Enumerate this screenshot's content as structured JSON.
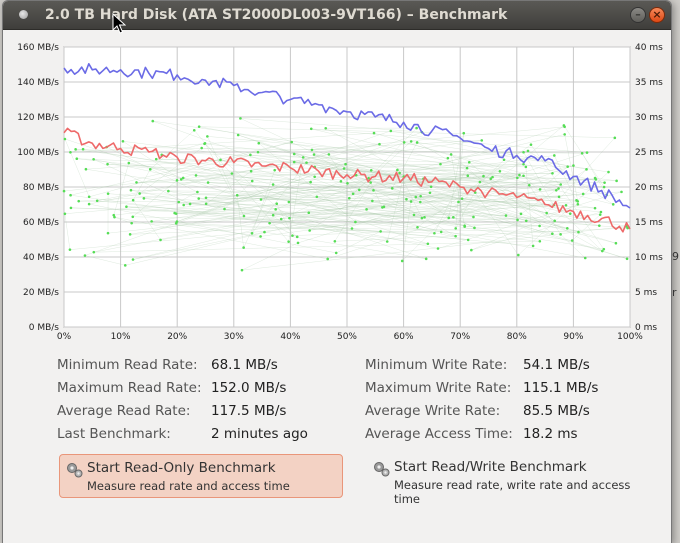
{
  "window": {
    "title": "2.0 TB Hard Disk (ATA ST2000DL003-9VT166) – Benchmark",
    "minimize_glyph": "–",
    "close_glyph": "×"
  },
  "background_fragments": [
    "9",
    "r"
  ],
  "chart_data": {
    "type": "line",
    "x_ticks": [
      "0%",
      "10%",
      "20%",
      "30%",
      "40%",
      "50%",
      "60%",
      "70%",
      "80%",
      "90%",
      "100%"
    ],
    "y_left_ticks": [
      "0 MB/s",
      "20 MB/s",
      "40 MB/s",
      "60 MB/s",
      "80 MB/s",
      "100 MB/s",
      "120 MB/s",
      "140 MB/s",
      "160 MB/s"
    ],
    "y_right_ticks": [
      "0 ms",
      "5 ms",
      "10 ms",
      "15 ms",
      "20 ms",
      "25 ms",
      "30 ms",
      "35 ms",
      "40 ms"
    ],
    "xlim": [
      0,
      100
    ],
    "ylim_left": [
      0,
      160
    ],
    "ylim_right": [
      0,
      40
    ],
    "grid": true,
    "series": [
      {
        "color": "#6b6be6",
        "x": [
          0,
          5,
          10,
          15,
          20,
          25,
          30,
          35,
          40,
          45,
          50,
          55,
          60,
          65,
          70,
          75,
          80,
          85,
          90,
          95,
          100
        ],
        "y": [
          148,
          147,
          147,
          145,
          144,
          141,
          138,
          134,
          130,
          127,
          123,
          120,
          117,
          112,
          108,
          102,
          98,
          95,
          86,
          78,
          68
        ]
      },
      {
        "color": "#ee6a6a",
        "x": [
          0,
          5,
          10,
          15,
          20,
          25,
          30,
          35,
          40,
          45,
          50,
          55,
          60,
          65,
          70,
          75,
          80,
          85,
          90,
          95,
          100
        ],
        "y": [
          111,
          105,
          102,
          100,
          97,
          95,
          94,
          92,
          91,
          89,
          87,
          86,
          85,
          83,
          80,
          77,
          74,
          70,
          66,
          62,
          56
        ]
      }
    ],
    "access_time_dot_color": "#55dd55"
  },
  "stats": {
    "left": [
      {
        "label": "Minimum Read Rate:",
        "value": "68.1 MB/s"
      },
      {
        "label": "Maximum Read Rate:",
        "value": "152.0 MB/s"
      },
      {
        "label": "Average Read Rate:",
        "value": "117.5 MB/s"
      },
      {
        "label": "Last Benchmark:",
        "value": "2 minutes ago"
      }
    ],
    "right": [
      {
        "label": "Minimum Write Rate:",
        "value": "54.1 MB/s"
      },
      {
        "label": "Maximum Write Rate:",
        "value": "115.1 MB/s"
      },
      {
        "label": "Average Write Rate:",
        "value": "85.5 MB/s"
      },
      {
        "label": "Average Access Time:",
        "value": "18.2 ms"
      }
    ]
  },
  "buttons": {
    "read_only": {
      "title": "Start Read-Only Benchmark",
      "subtitle": "Measure read rate and access time"
    },
    "read_write": {
      "title": "Start Read/Write Benchmark",
      "subtitle": "Measure read rate, write rate and access time"
    }
  }
}
